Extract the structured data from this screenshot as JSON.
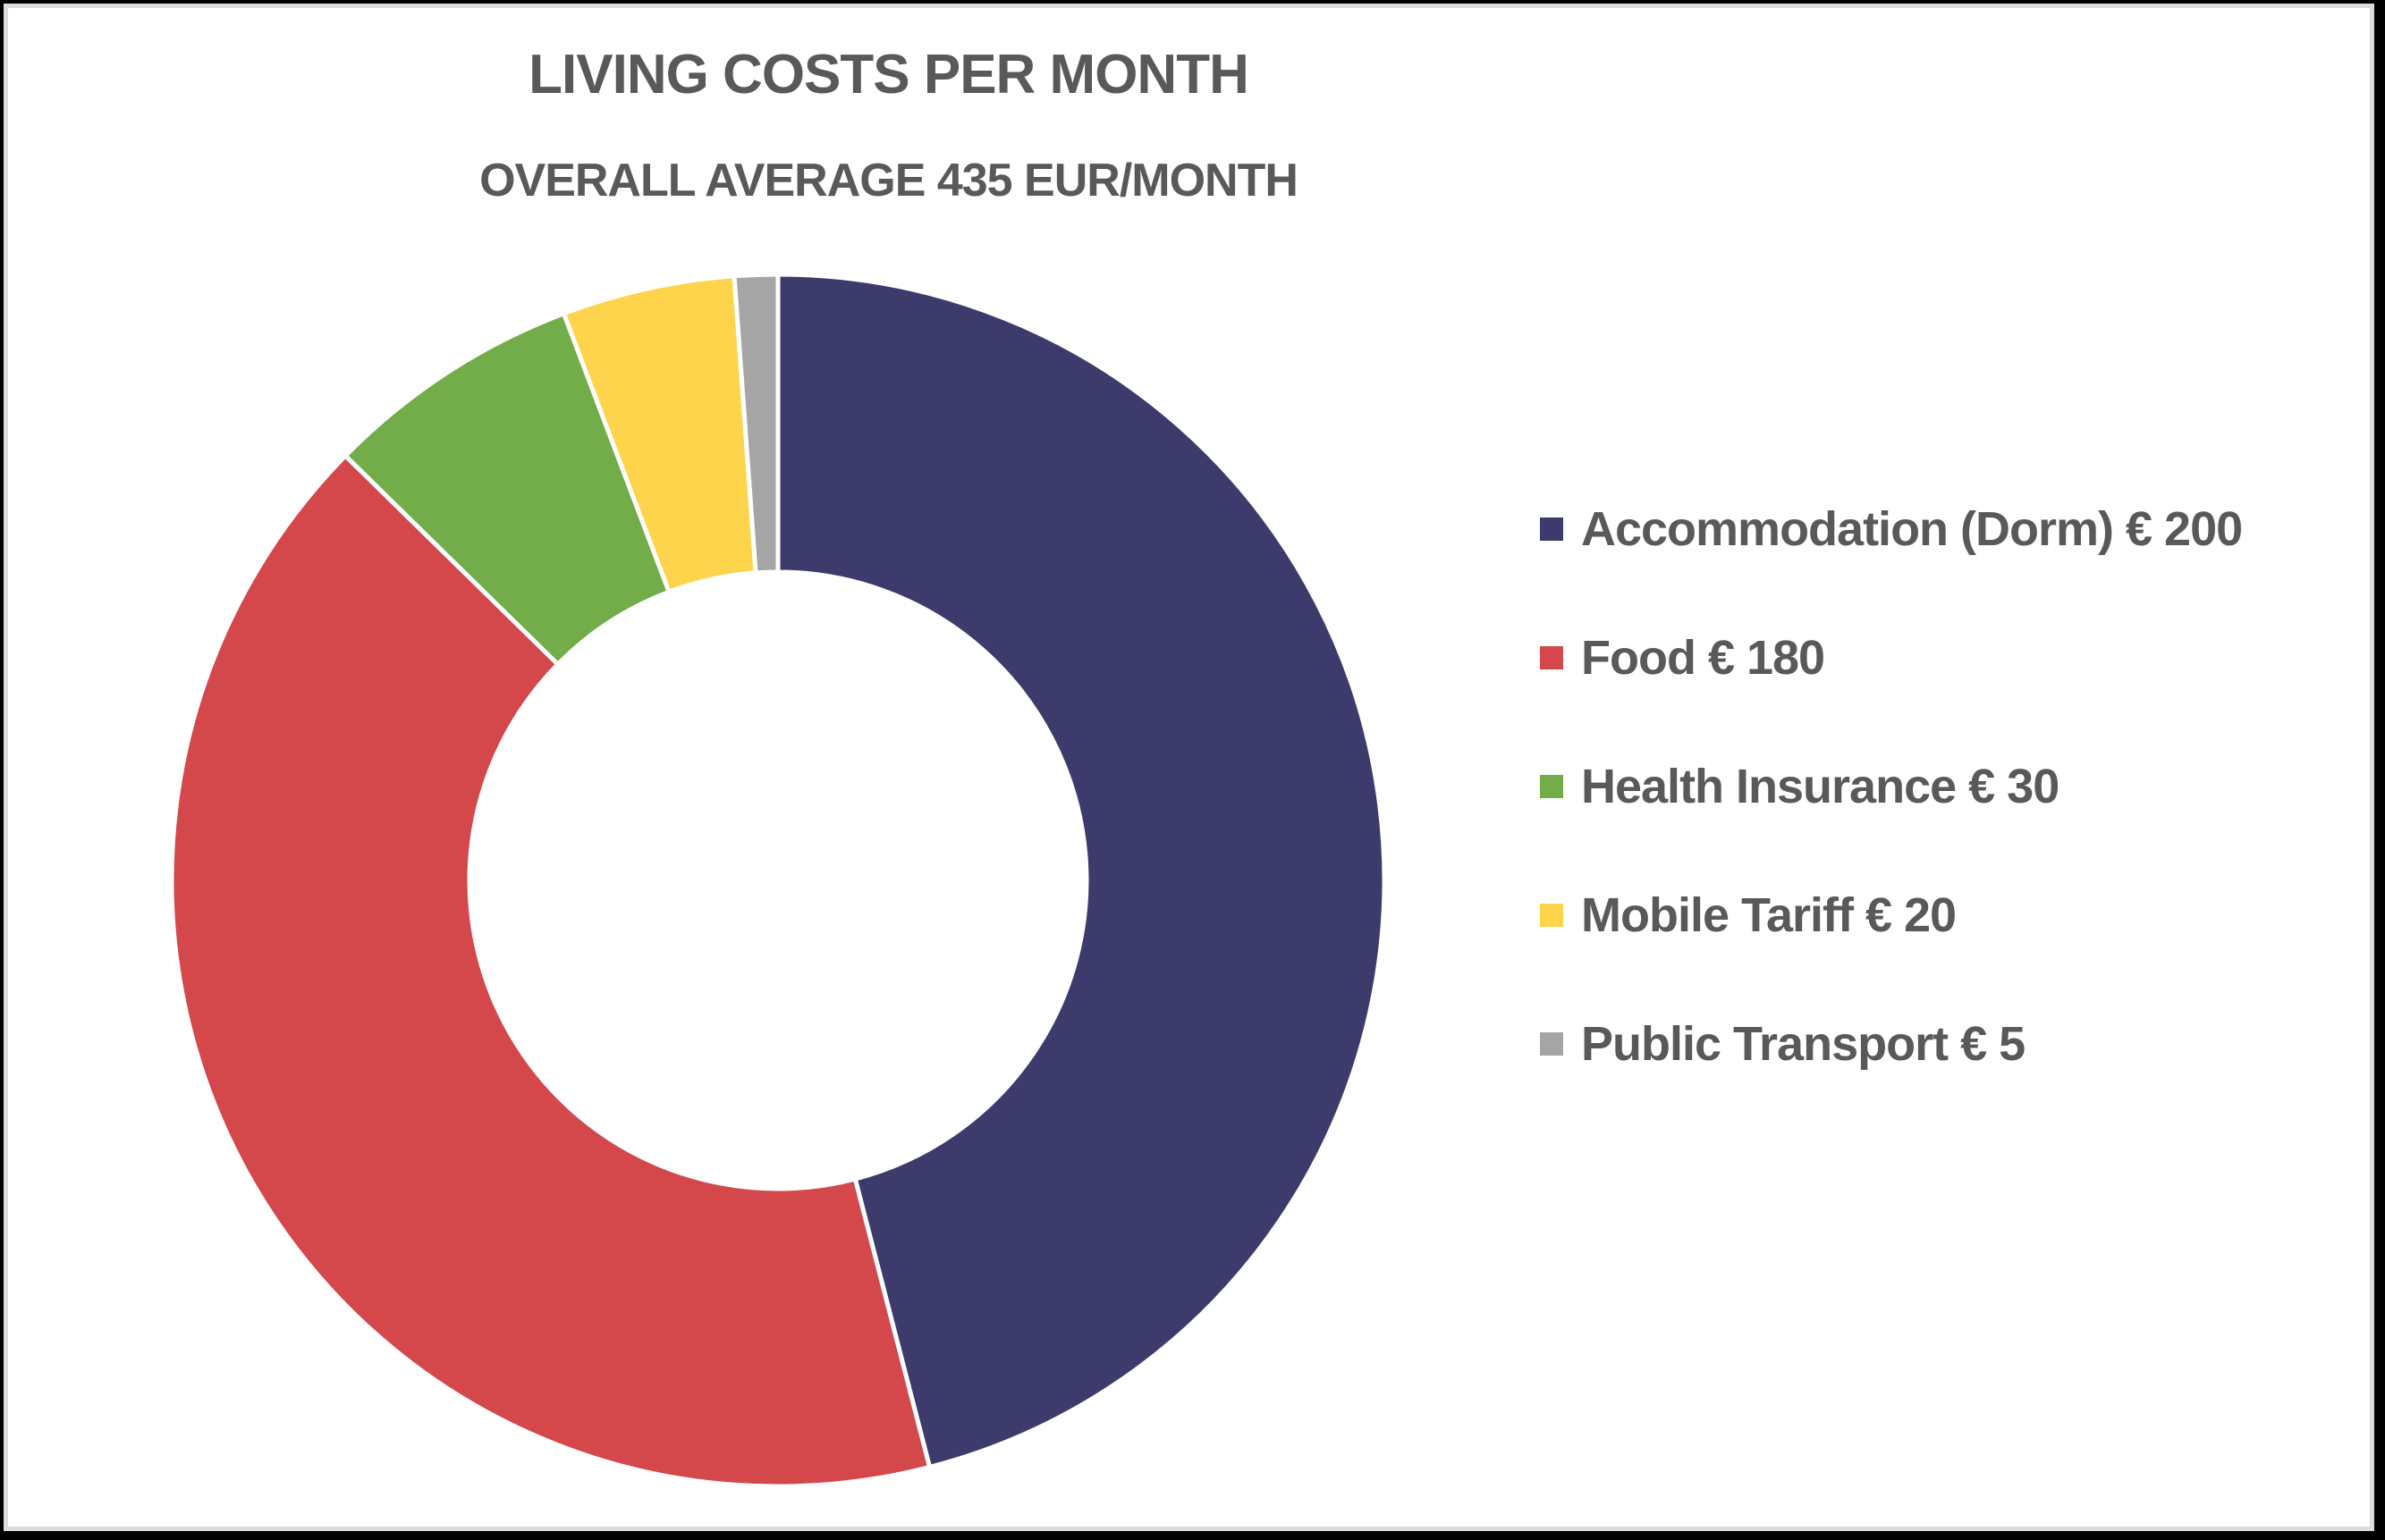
{
  "chart_data": {
    "type": "pie",
    "variant": "donut",
    "title": "LIVING COSTS PER MONTH",
    "subtitle": "OVERALL AVERAGE 435 EUR/MONTH",
    "categories": [
      "Accommodation (Dorm)",
      "Food",
      "Health Insurance",
      "Mobile Tariff",
      "Public Transport"
    ],
    "values": [
      200,
      180,
      30,
      20,
      5
    ],
    "unit": "EUR",
    "colors": [
      "#3C3B6B",
      "#D4474B",
      "#72AD4A",
      "#FDD44C",
      "#A5A5A5"
    ],
    "legend_position": "right",
    "legend": [
      {
        "label": "Accommodation (Dorm) € 200",
        "color": "#3C3B6B"
      },
      {
        "label": "Food € 180",
        "color": "#D4474B"
      },
      {
        "label": "Health Insurance € 30",
        "color": "#72AD4A"
      },
      {
        "label": "Mobile Tariff € 20",
        "color": "#FDD44C"
      },
      {
        "label": "Public Transport € 5",
        "color": "#A5A5A5"
      }
    ]
  }
}
